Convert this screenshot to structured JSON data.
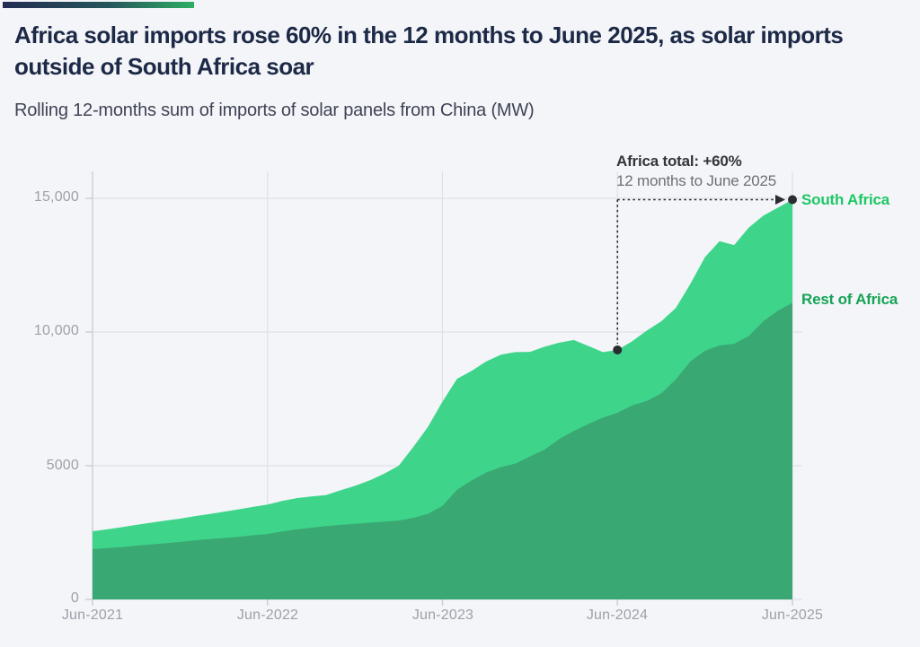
{
  "header": {
    "title": "Africa solar imports rose 60% in the 12 months to June 2025, as solar imports outside of South Africa soar",
    "subtitle": "Rolling 12-months sum of imports of solar panels from China (MW)"
  },
  "annotation": {
    "title": "Africa total: +60%",
    "subtitle": "12 months to June 2025"
  },
  "legend": {
    "south_africa": "South Africa",
    "rest_of_africa": "Rest of Africa"
  },
  "colors": {
    "background": "#f4f5f8",
    "accent_gradient_start": "#232d52",
    "accent_gradient_end": "#2fae63",
    "title_text": "#1c2947",
    "subtitle_text": "#3f4355",
    "south_africa_area": "#3ed58b",
    "rest_of_africa_area": "#3aa873",
    "south_africa_label": "#1ec765",
    "rest_of_africa_label": "#17a356",
    "grid": "#e0e1e8",
    "axis": "#c9cad2",
    "axis_text": "#9da0aa",
    "annotation_line": "#2c2c33"
  },
  "chart_data": {
    "type": "area",
    "stacked": true,
    "title": "Rolling 12-months sum of imports of solar panels from China (MW)",
    "x_unit": "months since Jun-2021 (monthly, Jun-2021 to Jun-2025)",
    "x_tick_months": [
      0,
      12,
      24,
      36,
      48
    ],
    "x_tick_labels": [
      "Jun-2021",
      "Jun-2022",
      "Jun-2023",
      "Jun-2024",
      "Jun-2025"
    ],
    "y_tick_labels": [
      "15,000",
      "10,000",
      "5000",
      "0"
    ],
    "y_tick_values": [
      15000,
      10000,
      5000,
      0
    ],
    "ylim": [
      0,
      16000
    ],
    "grid": true,
    "legend_position": "right-of-plot",
    "series": [
      {
        "name": "Rest of Africa",
        "stack_position": "bottom",
        "values": [
          1880,
          1920,
          1960,
          2010,
          2060,
          2100,
          2150,
          2210,
          2260,
          2300,
          2340,
          2400,
          2450,
          2540,
          2620,
          2680,
          2740,
          2790,
          2830,
          2870,
          2910,
          2950,
          3050,
          3200,
          3500,
          4100,
          4450,
          4750,
          4950,
          5080,
          5350,
          5600,
          6000,
          6300,
          6560,
          6800,
          6980,
          7250,
          7420,
          7700,
          8230,
          8900,
          9300,
          9500,
          9560,
          9850,
          10400,
          10800,
          11100
        ]
      },
      {
        "name": "South Africa",
        "stack_position": "top",
        "values": [
          670,
          700,
          740,
          780,
          810,
          850,
          870,
          900,
          930,
          980,
          1030,
          1060,
          1100,
          1140,
          1170,
          1170,
          1160,
          1290,
          1420,
          1580,
          1790,
          2050,
          2650,
          3250,
          3900,
          4150,
          4100,
          4150,
          4200,
          4170,
          3910,
          3850,
          3600,
          3400,
          2920,
          2450,
          2350,
          2400,
          2630,
          2700,
          2670,
          2900,
          3500,
          3900,
          3690,
          4050,
          3950,
          3850,
          3850
        ]
      }
    ],
    "annotation_points": {
      "start": {
        "month_label": "Jun-2024",
        "month_index": 36,
        "total": 9330
      },
      "end": {
        "month_label": "Jun-2025",
        "month_index": 48,
        "total": 14950
      }
    }
  }
}
